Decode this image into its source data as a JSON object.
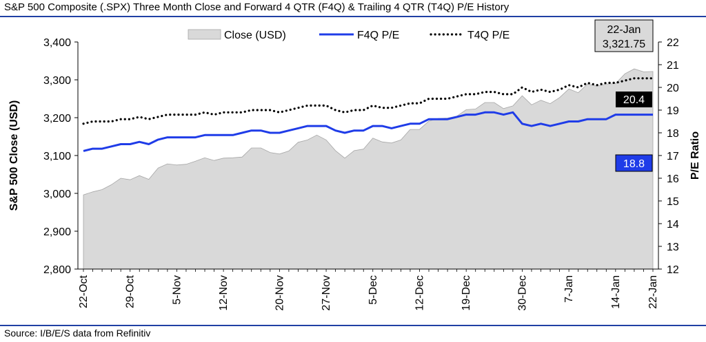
{
  "title": "S&P 500 Composite (.SPX) Three Month Close and Forward 4 QTR (F4Q) & Trailing 4 QTR (T4Q) P/E History",
  "source": "Source: I/B/E/S data from Refinitiv",
  "colors": {
    "close_fill": "#d9d9d9",
    "close_stroke": "#a6a6a6",
    "f4q": "#1f3ce8",
    "t4q": "#000000",
    "rule": "#1f3fa3",
    "label_t4q_bg": "#000000",
    "label_f4q_bg": "#1f3ce8",
    "callout_bg": "#d9d9d9"
  },
  "chart_data": {
    "type": "area+line",
    "ylabel_left": "S&P 500 Close (USD)",
    "ylabel_right": "P/E Ratio",
    "ylim_left": [
      2800,
      3400
    ],
    "ylim_right": [
      12,
      22
    ],
    "yticks_left": [
      "2,800",
      "2,900",
      "3,000",
      "3,100",
      "3,200",
      "3,300",
      "3,400"
    ],
    "yticks_right": [
      "12",
      "13",
      "14",
      "15",
      "16",
      "17",
      "18",
      "19",
      "20",
      "21",
      "22"
    ],
    "x_tick_labels": [
      "22-Oct",
      "29-Oct",
      "5-Nov",
      "12-Nov",
      "20-Nov",
      "27-Nov",
      "5-Dec",
      "12-Dec",
      "19-Dec",
      "30-Dec",
      "7-Jan",
      "14-Jan",
      "22-Jan"
    ],
    "x_tick_index": [
      0,
      5,
      10,
      15,
      21,
      26,
      31,
      36,
      41,
      47,
      52,
      57,
      63
    ],
    "legend_position": "top-center",
    "series": [
      {
        "name": "Close (USD)",
        "axis": "left",
        "style": "area",
        "values": [
          2996,
          3004,
          3010,
          3023,
          3040,
          3036,
          3047,
          3037,
          3067,
          3078,
          3075,
          3077,
          3085,
          3094,
          3087,
          3093,
          3094,
          3096,
          3120,
          3120,
          3108,
          3104,
          3112,
          3135,
          3141,
          3154,
          3141,
          3113,
          3093,
          3113,
          3117,
          3146,
          3136,
          3133,
          3141,
          3169,
          3169,
          3191,
          3198,
          3199,
          3204,
          3221,
          3223,
          3240,
          3240,
          3224,
          3231,
          3258,
          3234,
          3246,
          3237,
          3253,
          3276,
          3266,
          3289,
          3283,
          3289,
          3290,
          3316,
          3329,
          3321,
          3322
        ]
      },
      {
        "name": "F4Q P/E",
        "axis": "right",
        "style": "line",
        "values": [
          17.2,
          17.3,
          17.3,
          17.4,
          17.5,
          17.5,
          17.6,
          17.5,
          17.7,
          17.8,
          17.8,
          17.8,
          17.8,
          17.9,
          17.9,
          17.9,
          17.9,
          18.0,
          18.1,
          18.1,
          18.0,
          18.0,
          18.1,
          18.2,
          18.3,
          18.3,
          18.3,
          18.1,
          18.0,
          18.1,
          18.1,
          18.3,
          18.3,
          18.2,
          18.3,
          18.4,
          18.4,
          18.6,
          18.6,
          18.6,
          18.7,
          18.8,
          18.8,
          18.9,
          18.9,
          18.8,
          18.9,
          18.4,
          18.3,
          18.4,
          18.3,
          18.4,
          18.5,
          18.5,
          18.6,
          18.6,
          18.6,
          18.8,
          18.8,
          18.8,
          18.8,
          18.8
        ]
      },
      {
        "name": "T4Q P/E",
        "axis": "right",
        "style": "dotted",
        "values": [
          18.4,
          18.5,
          18.5,
          18.5,
          18.6,
          18.6,
          18.7,
          18.6,
          18.7,
          18.8,
          18.8,
          18.8,
          18.8,
          18.9,
          18.8,
          18.9,
          18.9,
          18.9,
          19.0,
          19.0,
          19.0,
          18.9,
          19.0,
          19.1,
          19.2,
          19.2,
          19.2,
          19.0,
          18.9,
          19.0,
          19.0,
          19.2,
          19.1,
          19.1,
          19.2,
          19.3,
          19.3,
          19.5,
          19.5,
          19.5,
          19.6,
          19.7,
          19.7,
          19.8,
          19.8,
          19.7,
          19.7,
          20.0,
          19.8,
          19.9,
          19.8,
          19.9,
          20.1,
          20.0,
          20.2,
          20.1,
          20.2,
          20.2,
          20.3,
          20.4,
          20.4,
          20.4
        ]
      }
    ],
    "callout": {
      "date": "22-Jan",
      "value": "3,321.75"
    },
    "end_labels": {
      "t4q": "20.4",
      "f4q": "18.8"
    }
  }
}
